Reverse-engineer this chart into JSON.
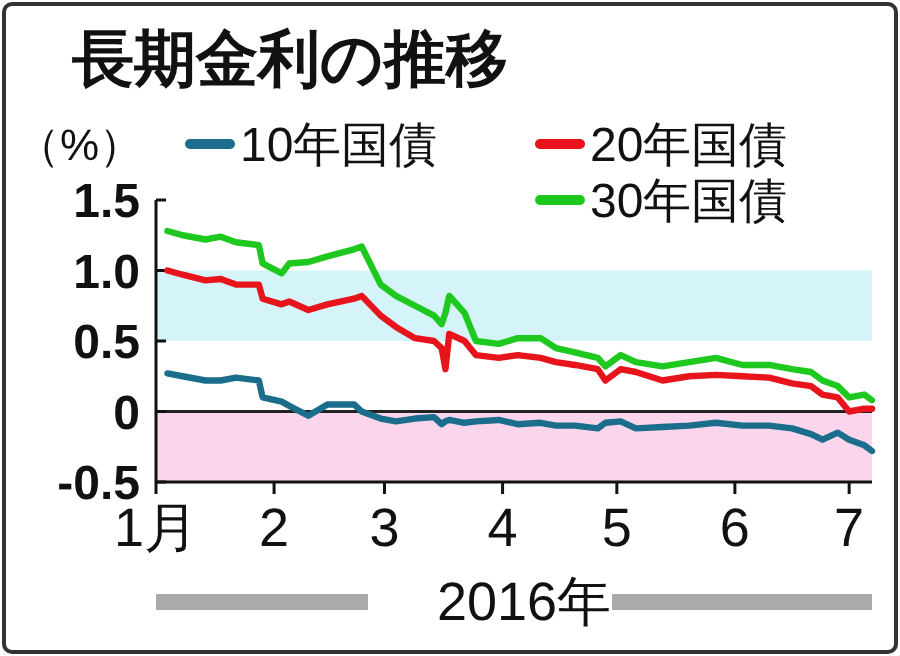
{
  "chart_data": {
    "type": "line",
    "title": "長期金利の推移",
    "ylabel": "（%）",
    "xlabel": "2016年",
    "xlim": [
      "2016-01-01",
      "2016-07-07"
    ],
    "xticks": [
      {
        "value": "2016-01-01",
        "label": "1月"
      },
      {
        "value": "2016-02-01",
        "label": "2"
      },
      {
        "value": "2016-03-01",
        "label": "3"
      },
      {
        "value": "2016-04-01",
        "label": "4"
      },
      {
        "value": "2016-05-01",
        "label": "5"
      },
      {
        "value": "2016-06-01",
        "label": "6"
      },
      {
        "value": "2016-07-01",
        "label": "7"
      }
    ],
    "ylim": [
      -0.5,
      1.5
    ],
    "yticks": [
      1.5,
      {
        "value": 1,
        "label": "1.0"
      },
      0.5,
      0,
      -0.5
    ],
    "grid": false,
    "legend": "top right",
    "bands": [
      {
        "axis": "y",
        "from": 0.5,
        "to": 1,
        "color": "#d4f4fa"
      },
      {
        "axis": "y",
        "from": -0.5,
        "to": 0,
        "color": "#fbd5ec"
      }
    ],
    "ref_lines": [
      {
        "axis": "y",
        "value": 0,
        "color": "#222222"
      }
    ],
    "x": [
      "2016-01-04",
      "2016-01-08",
      "2016-01-14",
      "2016-01-18",
      "2016-01-22",
      "2016-01-28",
      "2016-01-29",
      "2016-02-03",
      "2016-02-05",
      "2016-02-10",
      "2016-02-15",
      "2016-02-22",
      "2016-02-24",
      "2016-02-29",
      "2016-03-04",
      "2016-03-09",
      "2016-03-14",
      "2016-03-16",
      "2016-03-17",
      "2016-03-18",
      "2016-03-22",
      "2016-03-25",
      "2016-03-31",
      "2016-04-05",
      "2016-04-11",
      "2016-04-15",
      "2016-04-20",
      "2016-04-26",
      "2016-04-28",
      "2016-05-02",
      "2016-05-06",
      "2016-05-13",
      "2016-05-20",
      "2016-05-27",
      "2016-06-03",
      "2016-06-10",
      "2016-06-16",
      "2016-06-21",
      "2016-06-24",
      "2016-06-28",
      "2016-07-01",
      "2016-07-05",
      "2016-07-07"
    ],
    "series": [
      {
        "name": "10年国債",
        "color": "#1a6e8c",
        "values": [
          0.27,
          0.25,
          0.22,
          0.22,
          0.24,
          0.22,
          0.1,
          0.07,
          0.04,
          -0.03,
          0.05,
          0.05,
          0.0,
          -0.05,
          -0.07,
          -0.05,
          -0.04,
          -0.09,
          -0.07,
          -0.06,
          -0.08,
          -0.07,
          -0.06,
          -0.09,
          -0.08,
          -0.1,
          -0.1,
          -0.12,
          -0.08,
          -0.07,
          -0.12,
          -0.11,
          -0.1,
          -0.08,
          -0.1,
          -0.1,
          -0.12,
          -0.16,
          -0.2,
          -0.15,
          -0.2,
          -0.24,
          -0.28
        ]
      },
      {
        "name": "20年国債",
        "color": "#e8141b",
        "values": [
          1.0,
          0.97,
          0.93,
          0.94,
          0.9,
          0.9,
          0.8,
          0.76,
          0.78,
          0.72,
          0.76,
          0.8,
          0.82,
          0.68,
          0.6,
          0.52,
          0.5,
          0.45,
          0.3,
          0.55,
          0.5,
          0.4,
          0.38,
          0.4,
          0.38,
          0.35,
          0.33,
          0.3,
          0.22,
          0.3,
          0.28,
          0.22,
          0.25,
          0.26,
          0.25,
          0.24,
          0.2,
          0.18,
          0.12,
          0.1,
          0.0,
          0.02,
          0.02
        ]
      },
      {
        "name": "30年国債",
        "color": "#1ec81e",
        "values": [
          1.28,
          1.25,
          1.22,
          1.24,
          1.2,
          1.18,
          1.05,
          0.98,
          1.05,
          1.06,
          1.1,
          1.15,
          1.17,
          0.9,
          0.82,
          0.75,
          0.68,
          0.62,
          0.7,
          0.82,
          0.7,
          0.5,
          0.48,
          0.52,
          0.52,
          0.45,
          0.42,
          0.38,
          0.32,
          0.4,
          0.35,
          0.32,
          0.35,
          0.38,
          0.33,
          0.33,
          0.3,
          0.28,
          0.22,
          0.18,
          0.1,
          0.12,
          0.08
        ]
      }
    ]
  }
}
